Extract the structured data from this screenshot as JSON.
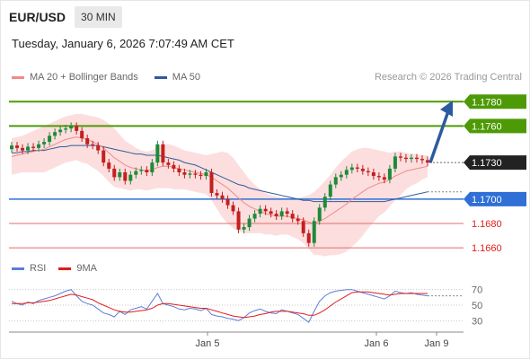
{
  "header": {
    "symbol": "EUR/USD",
    "interval": "30 MIN"
  },
  "datetime": "Tuesday, January 6, 2026 7:07:49 AM CET",
  "legend": {
    "ma20": {
      "label": "MA 20 + Bollinger Bands",
      "color": "#f08a8a"
    },
    "ma50": {
      "label": "MA 50",
      "color": "#2f5c9e"
    }
  },
  "credit": "Research © 2026 Trading Central",
  "rsi_legend": {
    "rsi": {
      "label": "RSI",
      "color": "#5a7fd6"
    },
    "ma9": {
      "label": "9MA",
      "color": "#e21b1b"
    }
  },
  "colors": {
    "up": "#1e8a3a",
    "down": "#c41f1f",
    "band_fill": "#fbd3d3",
    "green_level": "#4e9a06",
    "blue_level": "#2f6fd6",
    "red_level": "#e46b6b",
    "arrow": "#2c5aa0"
  },
  "chart_data": [
    {
      "type": "candlestick",
      "y_range": [
        1.1652,
        1.1792
      ],
      "x_labels": [
        "Jan 5",
        "Jan 6",
        "Jan 9"
      ],
      "levels": [
        {
          "value": 1.178,
          "label": "1.1780",
          "kind": "resistance"
        },
        {
          "value": 1.176,
          "label": "1.1760",
          "kind": "resistance"
        },
        {
          "value": 1.173,
          "label": "1.1730",
          "kind": "current"
        },
        {
          "value": 1.17,
          "label": "1.1700",
          "kind": "pivot"
        },
        {
          "value": 1.168,
          "label": "1.1680",
          "kind": "support"
        },
        {
          "value": 1.166,
          "label": "1.1660",
          "kind": "support"
        }
      ],
      "close": [
        1.1744,
        1.1742,
        1.174,
        1.1743,
        1.1742,
        1.1745,
        1.1747,
        1.1752,
        1.1755,
        1.1757,
        1.1758,
        1.176,
        1.1756,
        1.175,
        1.1745,
        1.1744,
        1.174,
        1.173,
        1.1725,
        1.1718,
        1.1722,
        1.1715,
        1.172,
        1.1723,
        1.1724,
        1.1722,
        1.173,
        1.1745,
        1.173,
        1.1728,
        1.1725,
        1.1722,
        1.172,
        1.1721,
        1.172,
        1.1719,
        1.1722,
        1.1705,
        1.1703,
        1.17,
        1.1695,
        1.169,
        1.1675,
        1.1677,
        1.1684,
        1.1688,
        1.1692,
        1.169,
        1.1688,
        1.1686,
        1.169,
        1.1688,
        1.1684,
        1.1682,
        1.1672,
        1.1664,
        1.1682,
        1.1693,
        1.1702,
        1.1712,
        1.1718,
        1.172,
        1.1724,
        1.1726,
        1.1725,
        1.1723,
        1.1722,
        1.1719,
        1.1718,
        1.1716,
        1.1725,
        1.1735,
        1.1734,
        1.1733,
        1.1734,
        1.1733,
        1.1732,
        1.173
      ],
      "ma20": [
        1.1735,
        1.1736,
        1.1737,
        1.1738,
        1.1739,
        1.174,
        1.1741,
        1.1743,
        1.1745,
        1.1747,
        1.1749,
        1.175,
        1.1751,
        1.175,
        1.1749,
        1.1747,
        1.1745,
        1.1742,
        1.1738,
        1.1734,
        1.1731,
        1.1728,
        1.1726,
        1.1725,
        1.1724,
        1.1723,
        1.1724,
        1.1726,
        1.1727,
        1.1727,
        1.1726,
        1.1725,
        1.1724,
        1.1723,
        1.1722,
        1.1721,
        1.172,
        1.1718,
        1.1715,
        1.1712,
        1.1709,
        1.1705,
        1.1701,
        1.1697,
        1.1694,
        1.1692,
        1.169,
        1.1688,
        1.1687,
        1.1686,
        1.1686,
        1.1686,
        1.1685,
        1.1684,
        1.1683,
        1.1681,
        1.168,
        1.1682,
        1.1684,
        1.1687,
        1.169,
        1.1693,
        1.1696,
        1.17,
        1.1703,
        1.1706,
        1.1709,
        1.1711,
        1.1713,
        1.1714,
        1.1716,
        1.1719,
        1.1721,
        1.1723,
        1.1724,
        1.1725,
        1.1726,
        1.1727
      ],
      "bb_upper": [
        1.175,
        1.1751,
        1.1752,
        1.1754,
        1.1756,
        1.1758,
        1.176,
        1.1762,
        1.1764,
        1.1766,
        1.1768,
        1.1769,
        1.177,
        1.177,
        1.1769,
        1.1768,
        1.1767,
        1.1765,
        1.1762,
        1.1758,
        1.1753,
        1.1748,
        1.1745,
        1.1742,
        1.174,
        1.1739,
        1.174,
        1.1743,
        1.1745,
        1.1745,
        1.1744,
        1.1742,
        1.174,
        1.1739,
        1.1738,
        1.1737,
        1.1736,
        1.1737,
        1.1738,
        1.1739,
        1.1738,
        1.1734,
        1.1728,
        1.1722,
        1.1716,
        1.1712,
        1.1708,
        1.1705,
        1.1703,
        1.1702,
        1.1701,
        1.1701,
        1.1701,
        1.1701,
        1.1702,
        1.1703,
        1.1706,
        1.171,
        1.1715,
        1.172,
        1.1726,
        1.1731,
        1.1735,
        1.1739,
        1.1741,
        1.1742,
        1.1742,
        1.1741,
        1.174,
        1.1739,
        1.1738,
        1.1739,
        1.1739,
        1.1738,
        1.1737,
        1.1737,
        1.1736,
        1.1736
      ],
      "bb_lower": [
        1.172,
        1.1721,
        1.1722,
        1.1722,
        1.1722,
        1.1722,
        1.1722,
        1.1724,
        1.1726,
        1.1728,
        1.173,
        1.1731,
        1.1732,
        1.173,
        1.1729,
        1.1726,
        1.1723,
        1.1719,
        1.1714,
        1.171,
        1.1709,
        1.1708,
        1.1707,
        1.1708,
        1.1708,
        1.1707,
        1.1708,
        1.1709,
        1.1709,
        1.1709,
        1.1708,
        1.1708,
        1.1708,
        1.1707,
        1.1706,
        1.1705,
        1.1704,
        1.1699,
        1.1692,
        1.1685,
        1.168,
        1.1676,
        1.1674,
        1.1672,
        1.1672,
        1.1672,
        1.1672,
        1.1671,
        1.1671,
        1.167,
        1.1671,
        1.1671,
        1.1669,
        1.1667,
        1.1664,
        1.1659,
        1.1654,
        1.1654,
        1.1653,
        1.1654,
        1.1654,
        1.1655,
        1.1657,
        1.1661,
        1.1665,
        1.167,
        1.1676,
        1.1681,
        1.1686,
        1.1689,
        1.1694,
        1.1699,
        1.1703,
        1.1708,
        1.1711,
        1.1713,
        1.1716,
        1.1718
      ],
      "ma50": [
        1.1738,
        1.1738,
        1.1739,
        1.1739,
        1.174,
        1.174,
        1.174,
        1.1741,
        1.1742,
        1.1743,
        1.1743,
        1.1744,
        1.1744,
        1.1744,
        1.1744,
        1.1744,
        1.1744,
        1.1743,
        1.1742,
        1.1741,
        1.174,
        1.1739,
        1.1738,
        1.1737,
        1.1737,
        1.1736,
        1.1736,
        1.1736,
        1.1735,
        1.1734,
        1.1733,
        1.1732,
        1.173,
        1.1729,
        1.1728,
        1.1726,
        1.1724,
        1.1722,
        1.172,
        1.1718,
        1.1716,
        1.1714,
        1.1712,
        1.1711,
        1.1709,
        1.1708,
        1.1707,
        1.1706,
        1.1705,
        1.1704,
        1.1703,
        1.1702,
        1.1701,
        1.17,
        1.1699,
        1.1699,
        1.1698,
        1.1698,
        1.1698,
        1.1698,
        1.1698,
        1.1698,
        1.1698,
        1.1698,
        1.1698,
        1.1698,
        1.1698,
        1.1698,
        1.1698,
        1.1698,
        1.1699,
        1.17,
        1.1701,
        1.1702,
        1.1703,
        1.1704,
        1.1705,
        1.1706
      ]
    },
    {
      "type": "line",
      "name": "RSI",
      "y_range": [
        20,
        80
      ],
      "y_ticks": [
        70,
        50,
        30
      ],
      "rsi": [
        55,
        52,
        50,
        54,
        52,
        56,
        58,
        60,
        62,
        65,
        68,
        70,
        62,
        55,
        52,
        50,
        45,
        40,
        38,
        35,
        42,
        38,
        44,
        46,
        48,
        45,
        55,
        65,
        52,
        50,
        48,
        45,
        44,
        46,
        45,
        43,
        46,
        38,
        36,
        35,
        33,
        32,
        30,
        34,
        40,
        43,
        45,
        42,
        40,
        39,
        44,
        42,
        40,
        38,
        33,
        28,
        42,
        55,
        62,
        66,
        68,
        69,
        70,
        70,
        68,
        66,
        64,
        62,
        60,
        58,
        62,
        68,
        66,
        65,
        66,
        64,
        63,
        62
      ],
      "ma9": [
        52,
        52,
        52,
        53,
        53,
        54,
        55,
        56,
        58,
        60,
        62,
        64,
        63,
        61,
        59,
        57,
        53,
        50,
        47,
        44,
        42,
        41,
        41,
        42,
        43,
        44,
        46,
        50,
        52,
        52,
        51,
        50,
        49,
        48,
        47,
        46,
        46,
        44,
        42,
        40,
        38,
        36,
        35,
        34,
        35,
        36,
        38,
        39,
        41,
        42,
        42,
        42,
        41,
        40,
        39,
        37,
        37,
        40,
        44,
        49,
        54,
        58,
        62,
        66,
        67,
        67,
        67,
        66,
        65,
        64,
        63,
        64,
        65,
        65,
        65,
        65,
        65,
        65
      ]
    }
  ]
}
